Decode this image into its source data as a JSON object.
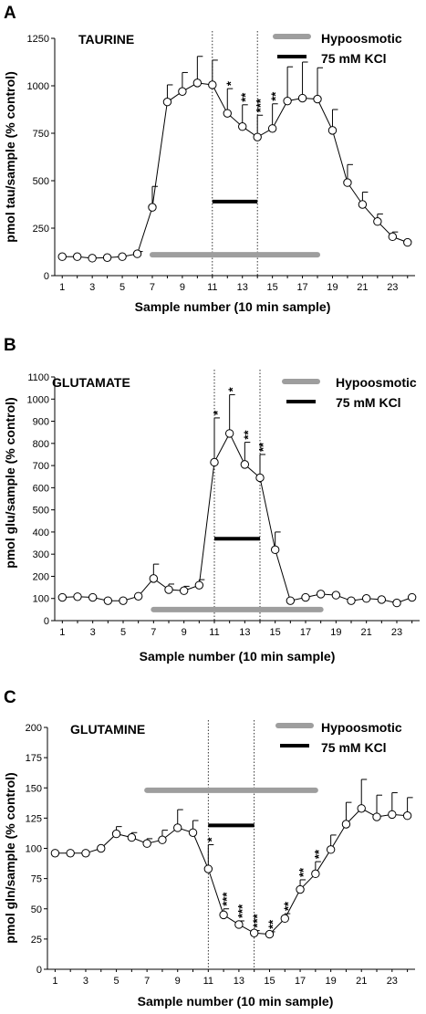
{
  "chart_data": [
    {
      "type": "line",
      "panel": "A",
      "title": "TAURINE",
      "xlabel": "Sample number (10 min sample)",
      "ylabel": "pmol tau/sample (% control)",
      "ylim": [
        0,
        1250
      ],
      "yticks": [
        0,
        250,
        500,
        750,
        1000,
        1250
      ],
      "xlim": [
        0.5,
        24.5
      ],
      "xticks": [
        1,
        3,
        5,
        7,
        9,
        11,
        13,
        15,
        17,
        19,
        21,
        23
      ],
      "legend_position": "top-right",
      "legend": [
        {
          "label": "Hypoosmotic",
          "color": "#9e9e9e"
        },
        {
          "label": "75 mM KCl",
          "color": "#000000"
        }
      ],
      "bars": [
        {
          "name": "Hypoosmotic",
          "x_start": 7,
          "x_end": 18,
          "y": 110,
          "color": "#9e9e9e"
        },
        {
          "name": "75 mM KCl",
          "x_start": 11,
          "x_end": 14,
          "y": 390,
          "color": "#000000"
        }
      ],
      "vlines": [
        11,
        14
      ],
      "series": [
        {
          "x": [
            1,
            2,
            3,
            4,
            5,
            6,
            7,
            8,
            9,
            10,
            11,
            12,
            13,
            14,
            15,
            16,
            17,
            18,
            19,
            20,
            21,
            22,
            23,
            24
          ],
          "y": [
            100,
            100,
            92,
            95,
            100,
            115,
            360,
            915,
            970,
            1015,
            1005,
            855,
            785,
            730,
            775,
            920,
            935,
            930,
            765,
            490,
            375,
            285,
            205,
            175
          ],
          "err": [
            0,
            0,
            0,
            0,
            0,
            12,
            110,
            90,
            100,
            140,
            130,
            130,
            115,
            115,
            130,
            180,
            190,
            165,
            110,
            95,
            65,
            40,
            25,
            0
          ],
          "sig": [
            "",
            "",
            "",
            "",
            "",
            "",
            "",
            "",
            "",
            "",
            "",
            "*",
            "**",
            "***",
            "**",
            "",
            "",
            "",
            "",
            "",
            "",
            "",
            "",
            ""
          ]
        }
      ]
    },
    {
      "type": "line",
      "panel": "B",
      "title": "GLUTAMATE",
      "xlabel": "Sample number (10 min sample)",
      "ylabel": "pmol glu/sample (% control)",
      "ylim": [
        0,
        1100
      ],
      "yticks": [
        0,
        100,
        200,
        300,
        400,
        500,
        600,
        700,
        800,
        900,
        1000,
        1100
      ],
      "xlim": [
        0.5,
        24.5
      ],
      "xticks": [
        1,
        3,
        5,
        7,
        9,
        11,
        13,
        15,
        17,
        19,
        21,
        23
      ],
      "legend_position": "top-right",
      "legend": [
        {
          "label": "Hypoosmotic",
          "color": "#9e9e9e"
        },
        {
          "label": "75 mM KCl",
          "color": "#000000"
        }
      ],
      "bars": [
        {
          "name": "Hypoosmotic",
          "x_start": 7,
          "x_end": 18,
          "y": 50,
          "color": "#9e9e9e"
        },
        {
          "name": "75 mM KCl",
          "x_start": 11,
          "x_end": 14,
          "y": 370,
          "color": "#000000"
        }
      ],
      "vlines": [
        11,
        14
      ],
      "series": [
        {
          "x": [
            1,
            2,
            3,
            4,
            5,
            6,
            7,
            8,
            9,
            10,
            11,
            12,
            13,
            14,
            15,
            16,
            17,
            18,
            19,
            20,
            21,
            22,
            23,
            24
          ],
          "y": [
            105,
            108,
            105,
            90,
            90,
            110,
            190,
            140,
            135,
            160,
            715,
            845,
            705,
            645,
            320,
            90,
            105,
            120,
            115,
            90,
            100,
            95,
            80,
            105
          ],
          "err": [
            0,
            0,
            0,
            0,
            0,
            0,
            65,
            25,
            20,
            25,
            200,
            175,
            100,
            105,
            80,
            0,
            0,
            0,
            0,
            0,
            0,
            0,
            0,
            0
          ],
          "sig": [
            "",
            "",
            "",
            "",
            "",
            "",
            "",
            "",
            "",
            "",
            "*",
            "*",
            "**",
            "**",
            "",
            "",
            "",
            "",
            "",
            "",
            "",
            "",
            "",
            ""
          ]
        }
      ]
    },
    {
      "type": "line",
      "panel": "C",
      "title": "GLUTAMINE",
      "xlabel": "Sample number (10 min sample)",
      "ylabel": "pmol gln/sample (% control)",
      "ylim": [
        0,
        200
      ],
      "yticks": [
        0,
        25,
        50,
        75,
        100,
        125,
        150,
        175,
        200
      ],
      "xlim": [
        0.5,
        24.5
      ],
      "xticks": [
        1,
        3,
        5,
        7,
        9,
        11,
        13,
        15,
        17,
        19,
        21,
        23
      ],
      "legend_position": "top-right",
      "legend": [
        {
          "label": "Hypoosmotic",
          "color": "#9e9e9e"
        },
        {
          "label": "75 mM KCl",
          "color": "#000000"
        }
      ],
      "bars": [
        {
          "name": "Hypoosmotic",
          "x_start": 7,
          "x_end": 18,
          "y": 148,
          "color": "#9e9e9e"
        },
        {
          "name": "75 mM KCl",
          "x_start": 11,
          "x_end": 14,
          "y": 119,
          "color": "#000000"
        }
      ],
      "vlines": [
        11,
        14
      ],
      "series": [
        {
          "x": [
            1,
            2,
            3,
            4,
            5,
            6,
            7,
            8,
            9,
            10,
            11,
            12,
            13,
            14,
            15,
            16,
            17,
            18,
            19,
            20,
            21,
            22,
            23,
            24
          ],
          "y": [
            96,
            96,
            96,
            100,
            112,
            109,
            104,
            107,
            117,
            113,
            83,
            45,
            37,
            30,
            29,
            42,
            66,
            79,
            99,
            120,
            133,
            126,
            128,
            127
          ],
          "err": [
            0,
            0,
            0,
            0,
            6,
            4,
            4,
            8,
            15,
            10,
            20,
            5,
            3,
            2,
            2,
            4,
            8,
            10,
            12,
            18,
            24,
            18,
            18,
            15
          ],
          "sig": [
            "",
            "",
            "",
            "",
            "",
            "",
            "",
            "",
            "",
            "",
            "*",
            "***",
            "***",
            "***",
            "**",
            "**",
            "**",
            "**",
            "",
            "",
            "",
            "",
            "",
            ""
          ]
        }
      ]
    }
  ]
}
